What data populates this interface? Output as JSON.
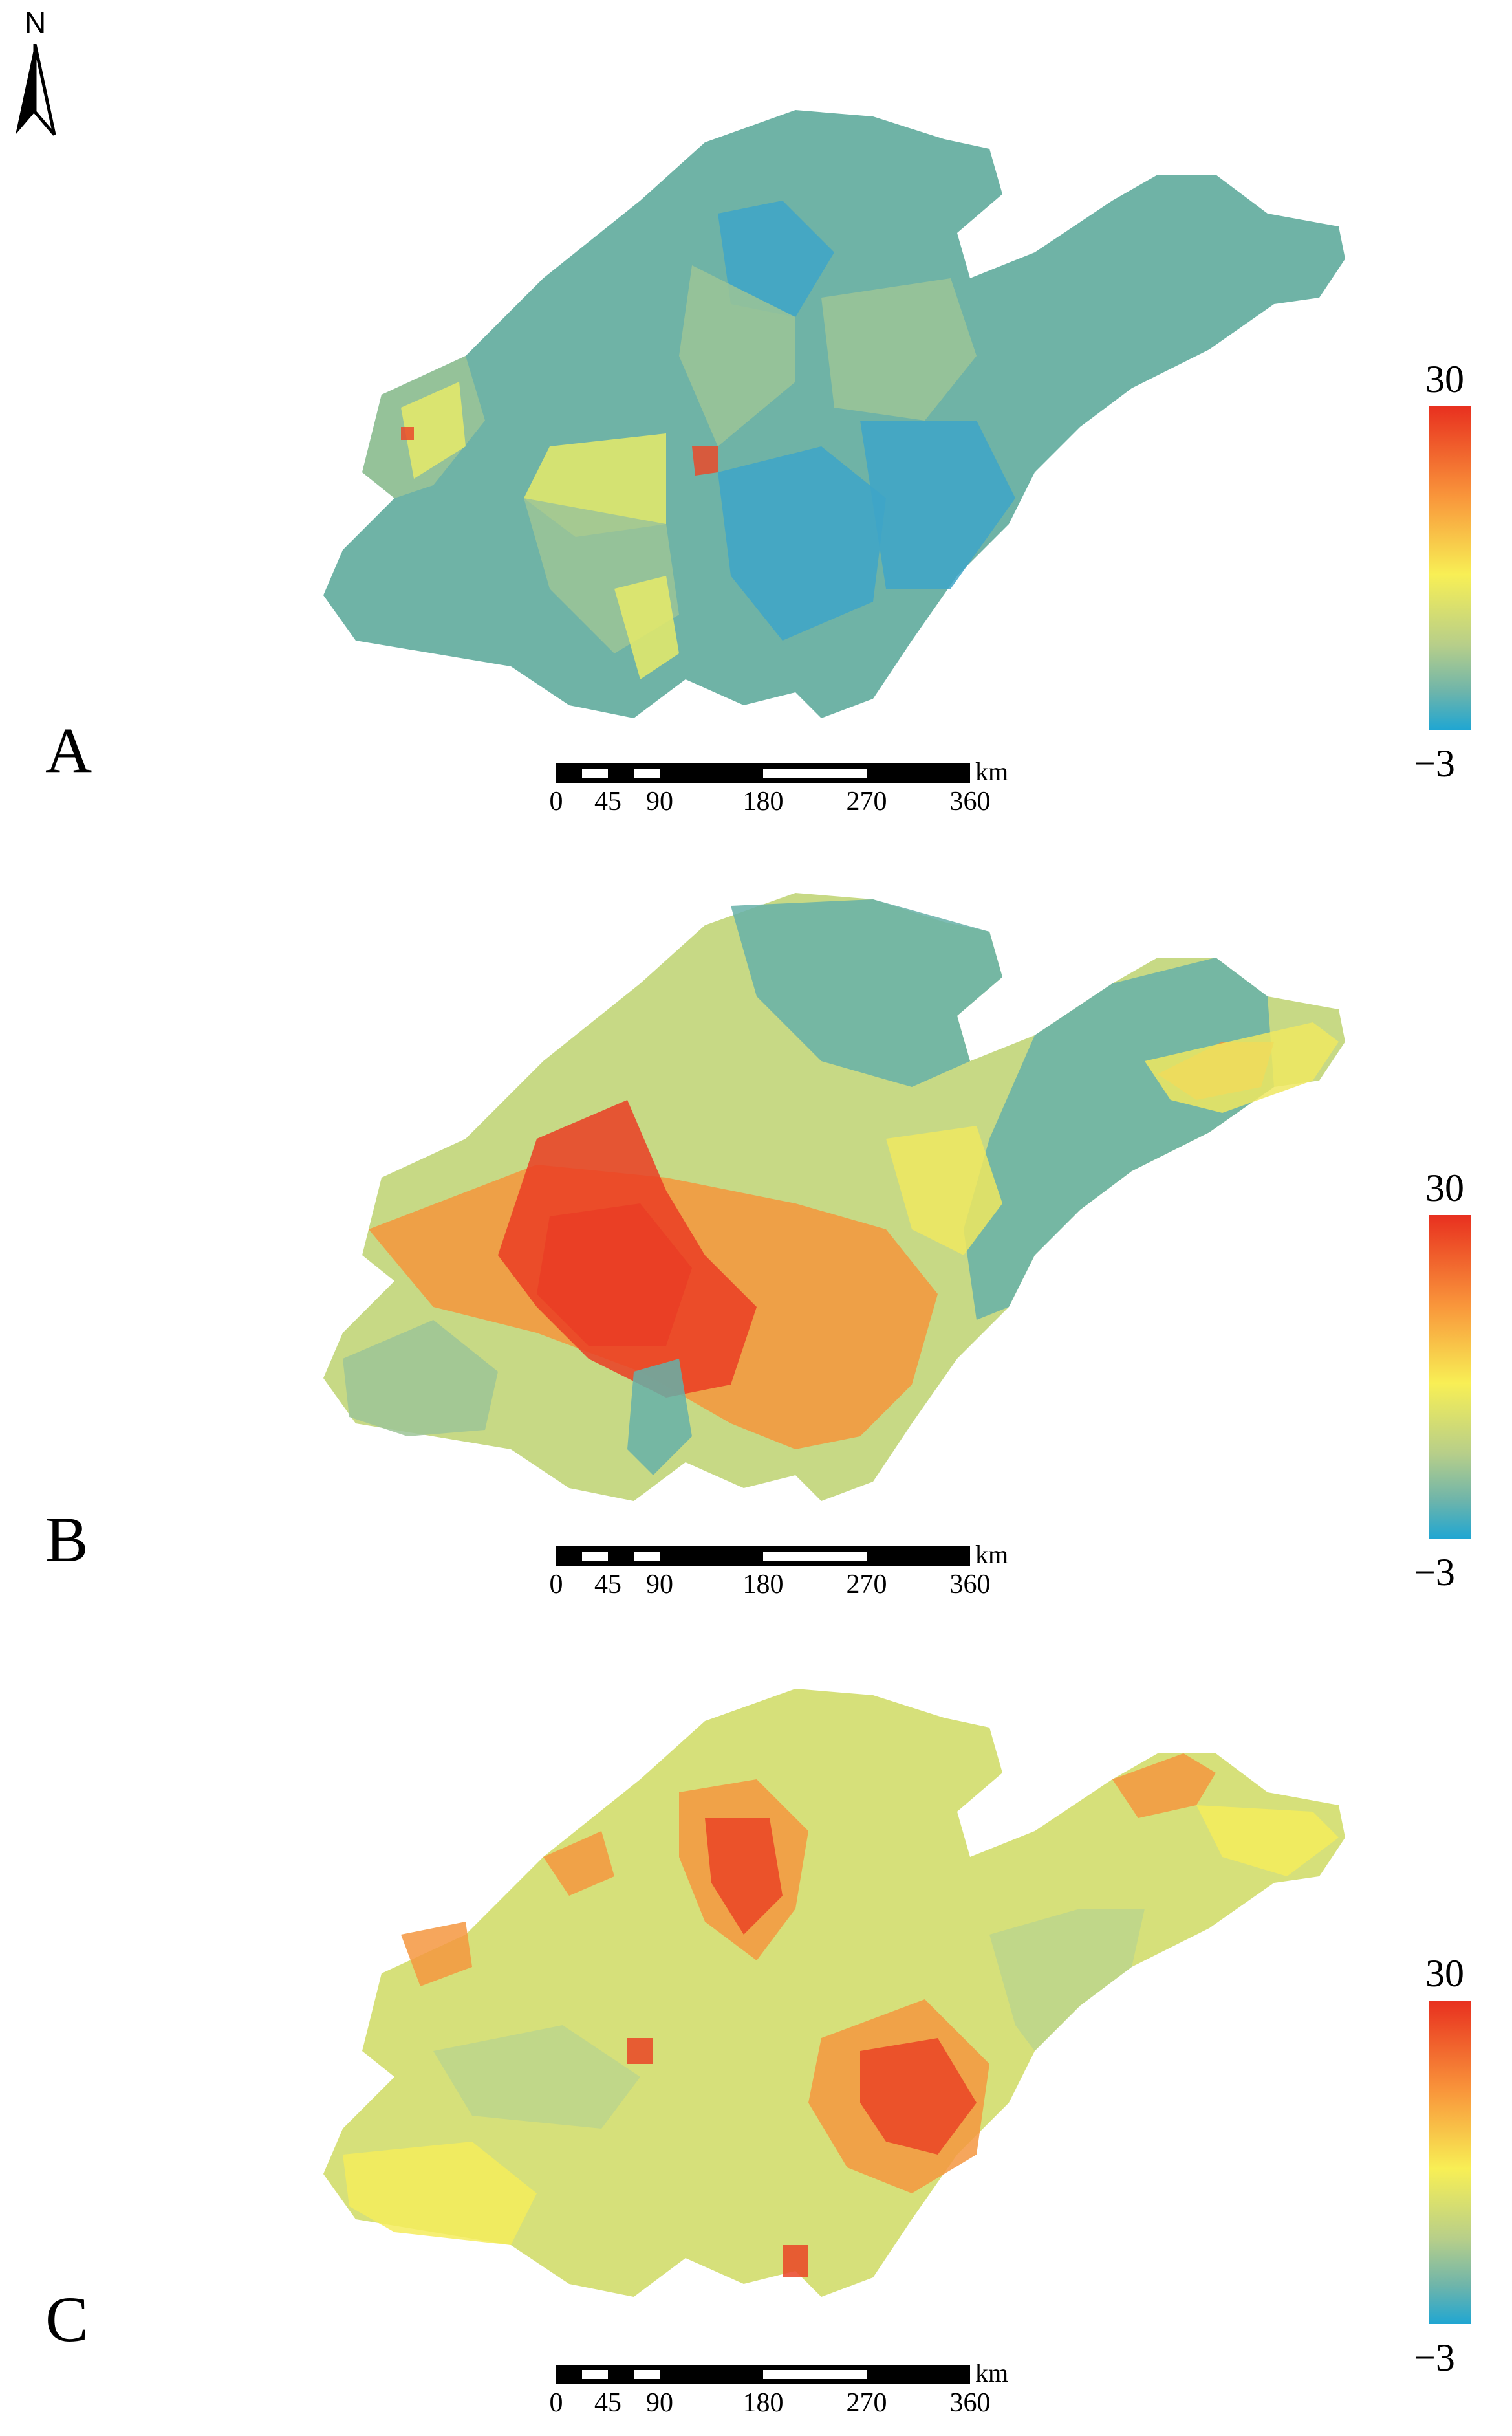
{
  "north_arrow": {
    "letter": "N"
  },
  "legend": {
    "max": "30",
    "min": "−3"
  },
  "scale": {
    "unit": "km",
    "ticks": [
      "0",
      "45",
      "90",
      "180",
      "270",
      "360"
    ]
  },
  "panels": [
    {
      "label": "A",
      "colors": {
        "base": "#6fb3a6",
        "blue": "#3ea5c8",
        "green": "#9cc497",
        "yellow": "#e6ea68",
        "orange": "#f0a544",
        "red": "#ea4a2a"
      }
    },
    {
      "label": "B",
      "colors": {
        "base": "#c7d985",
        "blue": "#66b0a8",
        "green": "#9cc497",
        "yellow": "#eee860",
        "orange": "#f5953c",
        "red": "#ea3d24"
      }
    },
    {
      "label": "C",
      "colors": {
        "base": "#d6e07a",
        "blue": "#7fb9a2",
        "green": "#bcd58c",
        "yellow": "#f4ec5c",
        "orange": "#f49640",
        "red": "#ea4426"
      }
    }
  ]
}
